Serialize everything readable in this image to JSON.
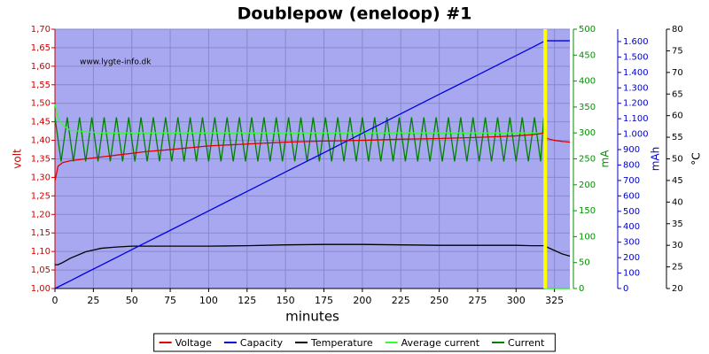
{
  "chart_data": {
    "type": "line",
    "title": "Doublepow (eneloop) #1",
    "annotation": "www.lygte-info.dk",
    "xlabel": "minutes",
    "ylabel": "volt",
    "y2label": "mA",
    "y3label": "mAh",
    "y4label": "°C",
    "grid": true,
    "legend": "bottom",
    "background": "#a8a8f0",
    "vline": {
      "x": 319,
      "color": "#ffff00"
    },
    "xlim": [
      0,
      335
    ],
    "xticks": [
      0,
      25,
      50,
      75,
      100,
      125,
      150,
      175,
      200,
      225,
      250,
      275,
      300,
      325
    ],
    "ylim": [
      1.0,
      1.7
    ],
    "yticks": [
      {
        "value": 1.0,
        "label": "1,00"
      },
      {
        "value": 1.05,
        "label": "1,05"
      },
      {
        "value": 1.1,
        "label": "1,10"
      },
      {
        "value": 1.15,
        "label": "1,15"
      },
      {
        "value": 1.2,
        "label": "1,20"
      },
      {
        "value": 1.25,
        "label": "1,25"
      },
      {
        "value": 1.3,
        "label": "1,30"
      },
      {
        "value": 1.35,
        "label": "1,35"
      },
      {
        "value": 1.4,
        "label": "1,40"
      },
      {
        "value": 1.45,
        "label": "1,45"
      },
      {
        "value": 1.5,
        "label": "1,50"
      },
      {
        "value": 1.55,
        "label": "1,55"
      },
      {
        "value": 1.6,
        "label": "1,60"
      },
      {
        "value": 1.65,
        "label": "1,65"
      },
      {
        "value": 1.7,
        "label": "1,70"
      }
    ],
    "y2lim": [
      0,
      500
    ],
    "y2ticks": [
      0,
      50,
      100,
      150,
      200,
      250,
      300,
      350,
      400,
      450,
      500
    ],
    "y3lim": [
      0,
      1680
    ],
    "y3ticks": [
      0,
      100,
      200,
      300,
      400,
      500,
      600,
      700,
      800,
      900,
      {
        "value": 1000,
        "label": "1.000"
      },
      {
        "value": 1100,
        "label": "1.100"
      },
      {
        "value": 1200,
        "label": "1.200"
      },
      {
        "value": 1300,
        "label": "1.300"
      },
      {
        "value": 1400,
        "label": "1.400"
      },
      {
        "value": 1500,
        "label": "1.500"
      },
      {
        "value": 1600,
        "label": "1.600"
      }
    ],
    "y4lim": [
      20,
      80
    ],
    "y4ticks": [
      20,
      25,
      30,
      35,
      40,
      45,
      50,
      55,
      60,
      65,
      70,
      75,
      80
    ],
    "x": [
      0,
      2,
      5,
      10,
      20,
      30,
      40,
      50,
      60,
      75,
      100,
      125,
      150,
      175,
      200,
      225,
      250,
      275,
      300,
      310,
      316,
      318,
      319,
      320,
      325,
      330,
      335
    ],
    "series": [
      {
        "name": "Voltage",
        "color": "#e00000",
        "axis": "y",
        "values": [
          1.29,
          1.33,
          1.34,
          1.345,
          1.35,
          1.355,
          1.36,
          1.365,
          1.37,
          1.375,
          1.385,
          1.39,
          1.395,
          1.398,
          1.4,
          1.403,
          1.405,
          1.408,
          1.412,
          1.415,
          1.418,
          1.42,
          1.415,
          1.405,
          1.4,
          1.397,
          1.395
        ]
      },
      {
        "name": "Capacity",
        "color": "#0000e0",
        "axis": "y3",
        "values": [
          0,
          10,
          25,
          50,
          101,
          151,
          201,
          252,
          302,
          377,
          503,
          629,
          755,
          880,
          1006,
          1132,
          1258,
          1383,
          1509,
          1559,
          1590,
          1600,
          1605,
          1605,
          1605,
          1605,
          1605
        ]
      },
      {
        "name": "Temperature",
        "color": "#000000",
        "axis": "y4",
        "values": [
          25.5,
          25.5,
          26,
          27,
          28.5,
          29.3,
          29.6,
          29.8,
          29.8,
          29.8,
          29.8,
          29.9,
          30.1,
          30.2,
          30.2,
          30.1,
          30,
          30,
          30,
          29.9,
          29.9,
          29.9,
          29.8,
          29.6,
          28.8,
          28,
          27.5
        ]
      },
      {
        "name": "Average current",
        "color": "#30ff30",
        "axis": "y2",
        "values": [
          355,
          330,
          315,
          305,
          302,
          300,
          300,
          300,
          300,
          300,
          300,
          300,
          300,
          300,
          300,
          300,
          300,
          300,
          300,
          300,
          300,
          298,
          0,
          0,
          0,
          0,
          0
        ]
      },
      {
        "name": "Current",
        "color": "#008000",
        "axis": "y2",
        "x": [
          0,
          4,
          8,
          12,
          16,
          20,
          24,
          28,
          32,
          36,
          40,
          44,
          48,
          52,
          56,
          60,
          64,
          68,
          72,
          76,
          80,
          84,
          88,
          92,
          96,
          100,
          104,
          108,
          112,
          116,
          120,
          124,
          128,
          132,
          136,
          140,
          144,
          148,
          152,
          156,
          160,
          164,
          168,
          172,
          176,
          180,
          184,
          188,
          192,
          196,
          200,
          204,
          208,
          212,
          216,
          220,
          224,
          228,
          232,
          236,
          240,
          244,
          248,
          252,
          256,
          260,
          264,
          268,
          272,
          276,
          280,
          284,
          288,
          292,
          296,
          300,
          304,
          308,
          312,
          316,
          318,
          319,
          335
        ],
        "values": [
          330,
          245,
          330,
          245,
          330,
          245,
          330,
          245,
          330,
          245,
          330,
          245,
          330,
          245,
          330,
          245,
          330,
          245,
          330,
          245,
          330,
          245,
          330,
          245,
          330,
          245,
          330,
          245,
          330,
          245,
          330,
          245,
          330,
          245,
          330,
          245,
          330,
          245,
          330,
          245,
          330,
          245,
          330,
          245,
          330,
          245,
          330,
          245,
          330,
          245,
          330,
          245,
          330,
          245,
          330,
          245,
          330,
          245,
          330,
          245,
          330,
          245,
          330,
          245,
          330,
          245,
          330,
          245,
          330,
          245,
          330,
          245,
          330,
          245,
          330,
          245,
          330,
          245,
          330,
          245,
          330,
          0,
          0
        ]
      }
    ]
  }
}
